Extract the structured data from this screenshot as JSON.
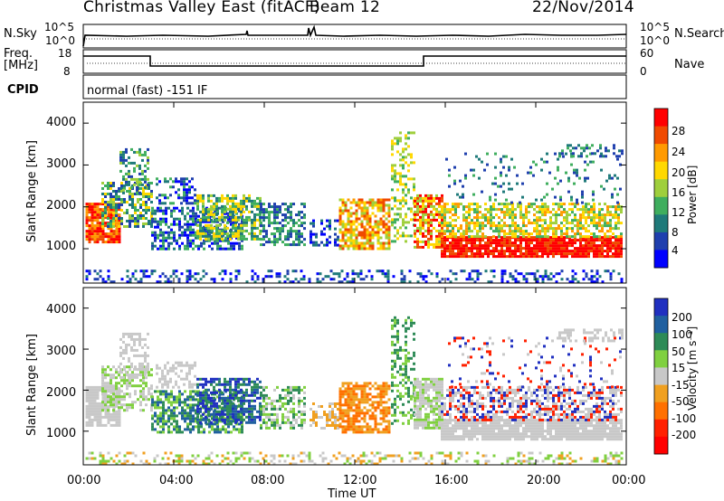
{
  "header": {
    "title": "Christmas Valley East (fitACF)",
    "beam": "Beam 12",
    "date": "22/Nov/2014"
  },
  "panels": {
    "nsky": {
      "left_label": "N.Sky",
      "right_label": "N.Search",
      "top_tick": "10^5",
      "bottom_tick": "10^0"
    },
    "freq": {
      "left_label_1": "Freq.",
      "left_label_2": "[MHz]",
      "right_label": "Nave",
      "left_ticks": [
        "18",
        "8"
      ],
      "right_ticks": [
        "60",
        "0"
      ]
    },
    "cpid": {
      "label": "CPID",
      "text": "normal (fast) -151 IF"
    }
  },
  "chart_data": [
    {
      "type": "heatmap",
      "name": "power",
      "ylabel": "Slant Range [km]",
      "ylim": [
        180,
        4500
      ],
      "yticks": [
        "1000",
        "2000",
        "3000",
        "4000"
      ],
      "xlim": [
        0,
        24
      ],
      "colorbar": {
        "label": "Power [dB]",
        "ticks": [
          "28",
          "24",
          "20",
          "16",
          "12",
          "8",
          "4"
        ],
        "colors": [
          "#ff0000",
          "#f04a00",
          "#ff9a00",
          "#ffd800",
          "#9fcf3c",
          "#3fae5e",
          "#1f7a7a",
          "#1f3fae",
          "#0000ff"
        ]
      }
    },
    {
      "type": "heatmap",
      "name": "velocity",
      "ylabel": "Slant Range [km]",
      "ylim": [
        180,
        4500
      ],
      "yticks": [
        "1000",
        "2000",
        "3000",
        "4000"
      ],
      "xlim": [
        0,
        24
      ],
      "xticks": [
        "00:00",
        "04:00",
        "08:00",
        "12:00",
        "16:00",
        "20:00",
        "00:00"
      ],
      "xlabel": "Time UT",
      "colorbar": {
        "label": "Velocity [m s⁻¹]",
        "ticks": [
          "200",
          "100",
          "50",
          "15",
          "-15",
          "-50",
          "-100",
          "-200"
        ],
        "colors": [
          "#2030c0",
          "#2060a0",
          "#2e8b57",
          "#80d040",
          "#c8c8c8",
          "#f0a020",
          "#ff7000",
          "#ff2000",
          "#ff0000"
        ]
      }
    }
  ]
}
